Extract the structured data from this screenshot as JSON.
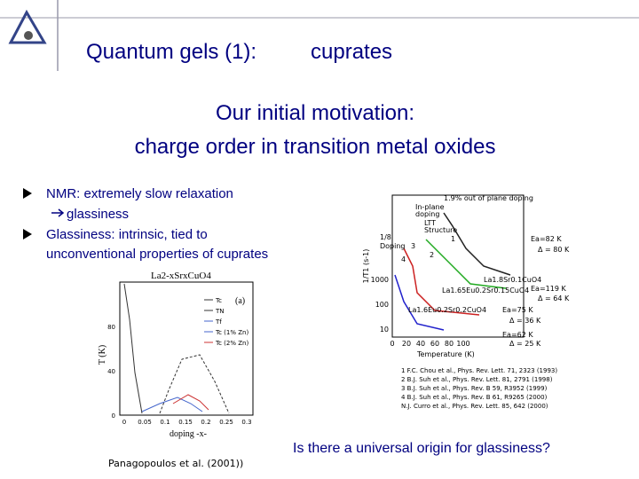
{
  "header": {
    "title": "Quantum gels (1):",
    "topic": "cuprates"
  },
  "motivation": [
    "Our initial motivation:",
    "charge order in transition metal oxides"
  ],
  "bullets": [
    {
      "text": "NMR: extremely slow relaxation",
      "sub": "glassiness"
    },
    {
      "text": "Glassiness: intrinsic, tied to",
      "continuation": "unconventional properties of cuprates"
    }
  ],
  "figure_left": {
    "title": "La2-xSrxCuO4",
    "y_label": "T (K)",
    "x_label": "doping -x-",
    "panel": "(a)",
    "y_ticks": [
      "0",
      "40",
      "80"
    ],
    "x_ticks": [
      "0",
      "0.05",
      "0.1",
      "0.15",
      "0.2",
      "0.25",
      "0.3"
    ],
    "legend": [
      "Tc",
      "TN",
      "Tf",
      "Tc (1% Zn)",
      "Tc (2% Zn)"
    ]
  },
  "figure_right": {
    "y_label": "1/T1 (s-1)",
    "x_label": "Temperature (K)",
    "y_ticks": [
      "1000",
      "100",
      "10"
    ],
    "x_ticks": [
      "0",
      "20",
      "40",
      "60",
      "80",
      "100"
    ],
    "notes": [
      "1.9% out of plane doping",
      "In-plane",
      "doping",
      "LTT",
      "Structure",
      "1/8",
      "Doping"
    ],
    "curve_ids": [
      "1",
      "2",
      "3",
      "4"
    ],
    "compounds": [
      "La1.8Sr0.1CuO4",
      "La1.65Eu0.2Sr0.15CuO4",
      "La1.6Eu0.2Sr0.2CuO4"
    ],
    "energies": [
      "Ea=82 K",
      "Δ = 80 K",
      "Ea=119 K",
      "Δ = 64 K",
      "Ea=75 K",
      "Δ = 36 K",
      "Ea=62 K",
      "Δ = 25 K"
    ],
    "references": [
      "1 F.C. Chou et al., Phys. Rev. Lett. 71, 2323 (1993)",
      "2 B.J. Suh et al., Phys. Rev. Lett. 81, 2791 (1998)",
      "3 B.J. Suh et al., Phys. Rev. B 59, R3952 (1999)",
      "4 B.J. Suh et al., Phys. Rev. B 61, R9265 (2000)",
      "N.J. Curro et al., Phys. Rev. Lett. 85, 642 (2000)"
    ]
  },
  "question": "Is there a universal origin for glassiness?",
  "citation": "Panagopoulos et al. (2001))"
}
